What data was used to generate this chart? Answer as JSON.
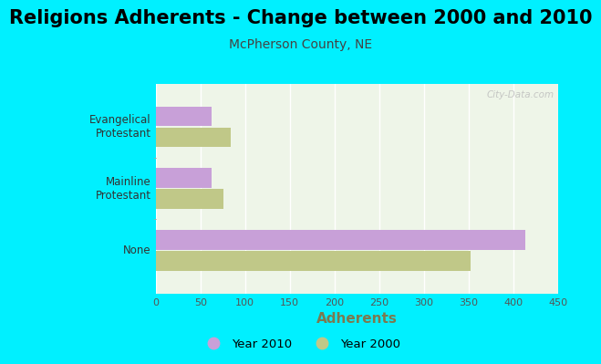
{
  "title": "Religions Adherents - Change between 2000 and 2010",
  "subtitle": "McPherson County, NE",
  "xlabel": "Adherents",
  "categories": [
    "Evangelical\nProtestant",
    "Mainline\nProtestant",
    "None"
  ],
  "year2010_values": [
    62,
    62,
    414
  ],
  "year2000_values": [
    84,
    76,
    352
  ],
  "color_2010": "#c8a0d8",
  "color_2000": "#c0c888",
  "xlim": [
    0,
    450
  ],
  "xticks": [
    0,
    50,
    100,
    150,
    200,
    250,
    300,
    350,
    400,
    450
  ],
  "background_outer": "#00f0ff",
  "background_inner": "#eef5e8",
  "title_fontsize": 15,
  "subtitle_fontsize": 10,
  "xlabel_fontsize": 11,
  "legend_labels": [
    "Year 2010",
    "Year 2000"
  ],
  "watermark": "City-Data.com",
  "xlabel_color": "#7a7a50",
  "tick_color": "#555555",
  "label_color": "#333333"
}
